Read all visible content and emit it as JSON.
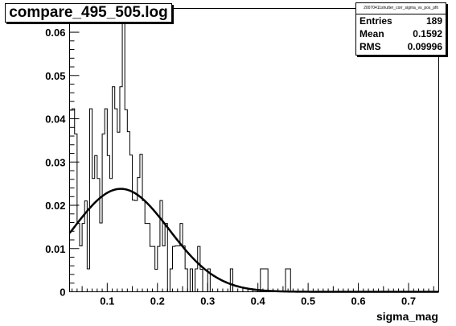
{
  "title": "compare_495_505.log",
  "stats": {
    "name": "20070411shutter_corr_sigma_vs_pos_pfit",
    "rows": [
      {
        "label": "Entries",
        "value": "189"
      },
      {
        "label": "Mean",
        "value": "0.1592"
      },
      {
        "label": "RMS",
        "value": "0.09996"
      }
    ]
  },
  "chart_data": {
    "type": "bar",
    "title": "compare_495_505.log",
    "xlabel": "sigma_mag",
    "ylabel": "",
    "xlim": [
      0.025,
      0.76
    ],
    "ylim": [
      0,
      0.0655
    ],
    "grid": false,
    "bin_width": 0.005,
    "bin_start": 0.025,
    "x_ticks": [
      0.1,
      0.2,
      0.3,
      0.4,
      0.5,
      0.6,
      0.7
    ],
    "x_tick_labels": [
      "0.1",
      "0.2",
      "0.3",
      "0.4",
      "0.5",
      "0.6",
      "0.7"
    ],
    "y_ticks": [
      0,
      0.01,
      0.02,
      0.03,
      0.04,
      0.05,
      0.06
    ],
    "y_tick_labels": [
      "0",
      "0.01",
      "0.02",
      "0.03",
      "0.04",
      "0.05",
      "0.06"
    ],
    "histogram_values": [
      0.042,
      0.0423,
      0.0365,
      0.0158,
      0.0106,
      0.0158,
      0.021,
      0.0053,
      0.0423,
      0.0262,
      0.0315,
      0.0262,
      0.0159,
      0.0365,
      0.0423,
      0.0315,
      0.0262,
      0.0474,
      0.0423,
      0.0369,
      0.0474,
      0.0634,
      0.0421,
      0.037,
      0.0316,
      0.0212,
      0.0211,
      0.0264,
      0.0318,
      0.0211,
      0.0158,
      0.0158,
      0.0105,
      0.0105,
      0.0052,
      0.0105,
      0.0211,
      0.0106,
      0.0158,
      0.0,
      0.0053,
      0.0105,
      0.0106,
      0.0106,
      0.0158,
      0.0106,
      0.0053,
      0.0,
      0.0053,
      0.0,
      0.0053,
      0.0105,
      0.0052,
      0.0,
      0.0,
      0.0053,
      0.0,
      0.0,
      0.0,
      0.0,
      0.0,
      0.0,
      0.0,
      0.0,
      0.0053,
      0.0,
      0.0,
      0.0,
      0.0,
      0.0,
      0.0,
      0.0,
      0.0,
      0.0,
      0.0,
      0.0,
      0.0053,
      0.0053,
      0.0053,
      0.0,
      0.0,
      0.0,
      0.0,
      0.0,
      0.0,
      0.0,
      0.0053,
      0.0053,
      0.0,
      0.0,
      0.0,
      0.0,
      0.0,
      0.0,
      0.0,
      0.0,
      0.0,
      0.0,
      0.0,
      0.0,
      0.0,
      0.0,
      0.0,
      0.0,
      0.0,
      0.0,
      0.0,
      0.0,
      0.0,
      0.0,
      0.0,
      0.0,
      0.0,
      0.0,
      0.0,
      0.0,
      0.0,
      0.0,
      0.0,
      0.0,
      0.0,
      0.0,
      0.0,
      0.0,
      0.0,
      0.0,
      0.0,
      0.0,
      0.0,
      0.0,
      0.0,
      0.0,
      0.0,
      0.0,
      0.0,
      0.0,
      0.0,
      0.0,
      0.0,
      0.0,
      0.0,
      0.0,
      0.0,
      0.0,
      0.0,
      0.0,
      0.0
    ],
    "fit": {
      "type": "gaussian",
      "amplitude": 0.0238,
      "mean": 0.127,
      "sigma": 0.096
    }
  }
}
